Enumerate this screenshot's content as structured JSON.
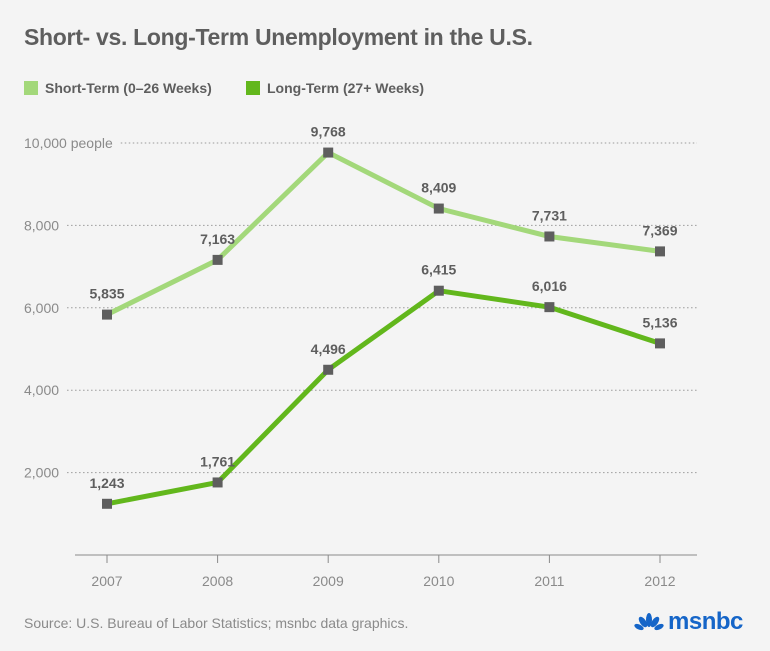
{
  "chart_data": {
    "type": "line",
    "title": "Short- vs. Long-Term Unemployment in the U.S.",
    "categories": [
      "2007",
      "2008",
      "2009",
      "2010",
      "2011",
      "2012"
    ],
    "series": [
      {
        "name": "Short-Term (0–26 Weeks)",
        "color": "#a3d87a",
        "values": [
          5835,
          7163,
          9768,
          8409,
          7731,
          7369
        ],
        "labels": [
          "5,835",
          "7,163",
          "9,768",
          "8,409",
          "7,731",
          "7,369"
        ]
      },
      {
        "name": "Long-Term (27+ Weeks)",
        "color": "#62b71c",
        "values": [
          1243,
          1761,
          4496,
          6415,
          6016,
          5136
        ],
        "labels": [
          "1,243",
          "1,761",
          "4,496",
          "6,415",
          "6,016",
          "5,136"
        ]
      }
    ],
    "yticks": [
      2000,
      4000,
      6000,
      8000,
      10000
    ],
    "ytick_labels": [
      "2,000",
      "4,000",
      "6,000",
      "8,000",
      "10,000 people"
    ],
    "ylim": [
      0,
      10000
    ],
    "grid": true,
    "legend": "top-left",
    "marker_color": "#5e5e5e"
  },
  "source": "Source: U.S. Bureau of Labor Statistics; msnbc data graphics.",
  "logo": "msnbc"
}
